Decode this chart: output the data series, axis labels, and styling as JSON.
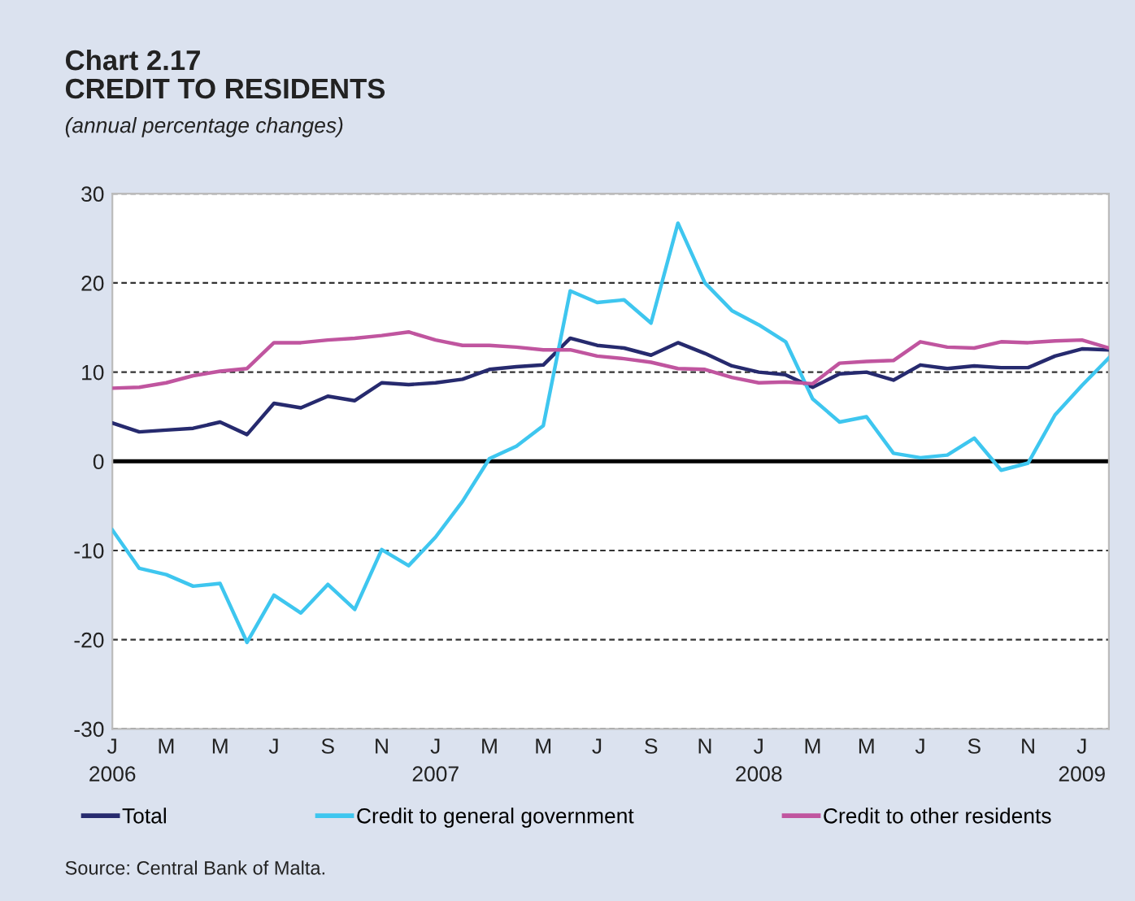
{
  "chart_data": {
    "type": "line",
    "title": "Chart 2.17\nCREDIT TO RESIDENTS",
    "subtitle": "(annual percentage changes)",
    "x": [
      "2006-01",
      "2006-02",
      "2006-03",
      "2006-04",
      "2006-05",
      "2006-06",
      "2006-07",
      "2006-08",
      "2006-09",
      "2006-10",
      "2006-11",
      "2006-12",
      "2007-01",
      "2007-02",
      "2007-03",
      "2007-04",
      "2007-05",
      "2007-06",
      "2007-07",
      "2007-08",
      "2007-09",
      "2007-10",
      "2007-11",
      "2007-12",
      "2008-01",
      "2008-02",
      "2008-03",
      "2008-04",
      "2008-05",
      "2008-06",
      "2008-07",
      "2008-08",
      "2008-09",
      "2008-10",
      "2008-11",
      "2008-12",
      "2009-01",
      "2009-02"
    ],
    "series": [
      {
        "name": "Total",
        "color": "#262a6e",
        "values": [
          4.3,
          3.3,
          3.5,
          3.7,
          4.4,
          3.0,
          6.5,
          6.0,
          7.3,
          6.8,
          8.8,
          8.6,
          8.8,
          9.2,
          10.3,
          10.6,
          10.8,
          13.8,
          13.0,
          12.7,
          11.9,
          13.3,
          12.1,
          10.7,
          10.0,
          9.7,
          8.3,
          9.8,
          10.0,
          9.1,
          10.8,
          10.4,
          10.7,
          10.5,
          10.5,
          11.8,
          12.6,
          12.5
        ]
      },
      {
        "name": "Credit to general government",
        "color": "#3ec6ef",
        "values": [
          -7.7,
          -12.0,
          -12.7,
          -14.0,
          -13.7,
          -20.3,
          -15.0,
          -17.0,
          -13.8,
          -16.6,
          -9.9,
          -11.7,
          -8.5,
          -4.5,
          0.3,
          1.7,
          4.0,
          19.1,
          17.8,
          18.1,
          15.5,
          26.7,
          20.0,
          16.9,
          15.3,
          13.4,
          7.0,
          4.4,
          5.0,
          0.9,
          0.4,
          0.7,
          2.6,
          -1.0,
          -0.2,
          5.2,
          8.5,
          11.6
        ]
      },
      {
        "name": "Credit to other residents",
        "color": "#c0559f",
        "values": [
          8.2,
          8.3,
          8.8,
          9.6,
          10.1,
          10.4,
          13.3,
          13.3,
          13.6,
          13.8,
          14.1,
          14.5,
          13.6,
          13.0,
          13.0,
          12.8,
          12.5,
          12.5,
          11.8,
          11.5,
          11.1,
          10.4,
          10.3,
          9.4,
          8.8,
          8.9,
          8.7,
          11.0,
          11.2,
          11.3,
          13.4,
          12.8,
          12.7,
          13.4,
          13.3,
          13.5,
          13.6,
          12.7
        ]
      }
    ],
    "xlim": [
      "2006-01",
      "2009-02"
    ],
    "xticks": [
      {
        "value": "2006-01",
        "label": "J\n2006"
      },
      {
        "value": "2006-03",
        "label": "M"
      },
      {
        "value": "2006-05",
        "label": "M"
      },
      {
        "value": "2006-07",
        "label": "J"
      },
      {
        "value": "2006-09",
        "label": "S"
      },
      {
        "value": "2006-11",
        "label": "N"
      },
      {
        "value": "2007-01",
        "label": "J\n2007"
      },
      {
        "value": "2007-03",
        "label": "M"
      },
      {
        "value": "2007-05",
        "label": "M"
      },
      {
        "value": "2007-07",
        "label": "J"
      },
      {
        "value": "2007-09",
        "label": "S"
      },
      {
        "value": "2007-11",
        "label": "N"
      },
      {
        "value": "2008-01",
        "label": "J\n2008"
      },
      {
        "value": "2008-03",
        "label": "M"
      },
      {
        "value": "2008-05",
        "label": "M"
      },
      {
        "value": "2008-07",
        "label": "J"
      },
      {
        "value": "2008-09",
        "label": "S"
      },
      {
        "value": "2008-11",
        "label": "N"
      },
      {
        "value": "2009-01",
        "label": "J\n2009"
      }
    ],
    "ylim": [
      -30,
      30
    ],
    "yticks": [
      -30,
      -20,
      -10,
      0,
      10,
      20,
      30
    ],
    "ref_lines": [
      {
        "axis": "y",
        "value": 0,
        "color": "#000000"
      }
    ],
    "grid": "y",
    "legend": "bottom",
    "marker": "none",
    "line_style": "solid",
    "annotations": [
      "Source: Central Bank of Malta."
    ]
  }
}
